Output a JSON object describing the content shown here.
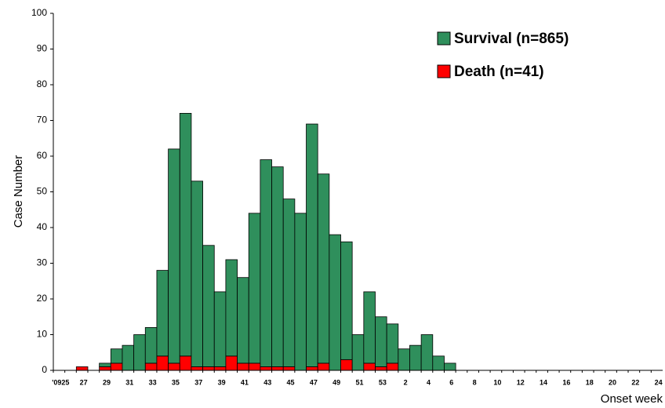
{
  "chart_data": {
    "type": "stacked_bar",
    "y_label": "Case Number",
    "x_label": "Onset week",
    "categories": [
      "'0925",
      null,
      "27",
      null,
      "29",
      null,
      "31",
      null,
      "33",
      null,
      "35",
      null,
      "37",
      null,
      "39",
      null,
      "41",
      null,
      "43",
      null,
      "45",
      null,
      "47",
      null,
      "49",
      null,
      "51",
      null,
      "53",
      null,
      "2",
      null,
      "4",
      null,
      "6",
      null,
      "8",
      null,
      "10",
      null,
      "12",
      null,
      "14",
      null,
      "16",
      null,
      "18",
      null,
      "20",
      null,
      "22",
      null,
      "24"
    ],
    "series": [
      {
        "name": "Death (n=41)",
        "color": "#ff0000",
        "values": [
          0,
          0,
          1,
          0,
          1,
          2,
          0,
          0,
          2,
          4,
          2,
          4,
          1,
          1,
          1,
          4,
          2,
          2,
          1,
          1,
          1,
          0,
          1,
          2,
          0,
          3,
          0,
          2,
          1,
          2,
          0,
          0,
          0,
          0,
          0,
          0,
          0,
          0,
          0,
          0,
          0,
          0,
          0,
          0,
          0,
          0,
          0,
          0,
          0,
          0,
          0,
          0,
          0
        ]
      },
      {
        "name": "Survival (n=865)",
        "color": "#2f8f5c",
        "values": [
          0,
          0,
          0,
          0,
          1,
          4,
          7,
          10,
          10,
          24,
          60,
          68,
          52,
          34,
          21,
          27,
          24,
          42,
          58,
          56,
          47,
          44,
          68,
          53,
          38,
          33,
          10,
          20,
          14,
          11,
          6,
          7,
          10,
          4,
          2,
          0,
          0,
          0,
          0,
          0,
          0,
          0,
          0,
          0,
          0,
          0,
          0,
          0,
          0,
          0,
          0,
          0,
          0
        ]
      }
    ],
    "legend_order": [
      1,
      0
    ],
    "ylim": [
      0,
      100
    ],
    "yticks": [
      0,
      10,
      20,
      30,
      40,
      50,
      60,
      70,
      80,
      90,
      100
    ],
    "grid": false
  }
}
